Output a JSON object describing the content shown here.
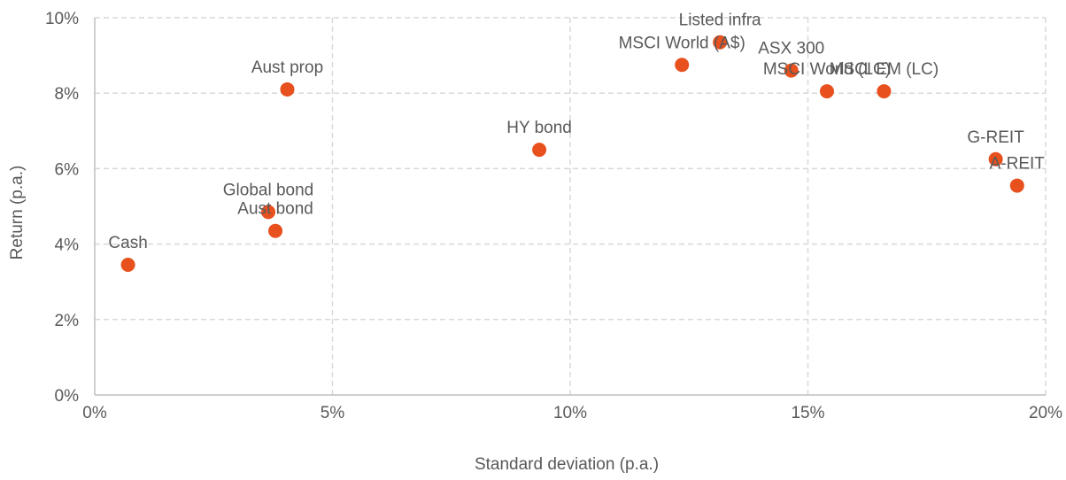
{
  "chart_data": {
    "type": "scatter",
    "xlabel": "Standard deviation (p.a.)",
    "ylabel": "Return (p.a.)",
    "xlim": [
      0,
      20
    ],
    "ylim": [
      0,
      10
    ],
    "x_unit": "%",
    "y_unit": "%",
    "x_ticks": [
      "0%",
      "5%",
      "10%",
      "15%",
      "20%"
    ],
    "y_ticks": [
      "0%",
      "2%",
      "4%",
      "6%",
      "8%",
      "10%"
    ],
    "grid": true,
    "marker_color": "#E8501E",
    "points": [
      {
        "label": "Cash",
        "x": 0.7,
        "y": 3.45
      },
      {
        "label": "Global bond",
        "x": 3.65,
        "y": 4.85
      },
      {
        "label": "Aust bond",
        "x": 3.8,
        "y": 4.35
      },
      {
        "label": "Aust prop",
        "x": 4.05,
        "y": 8.1
      },
      {
        "label": "HY bond",
        "x": 9.35,
        "y": 6.5
      },
      {
        "label": "MSCI World (A$)",
        "x": 12.35,
        "y": 8.75
      },
      {
        "label": "Listed infra",
        "x": 13.15,
        "y": 9.35
      },
      {
        "label": "ASX 300",
        "x": 14.65,
        "y": 8.6
      },
      {
        "label": "MSCI World (LC)",
        "x": 15.4,
        "y": 8.05
      },
      {
        "label": "MSCI EM (LC)",
        "x": 16.6,
        "y": 8.05
      },
      {
        "label": "G-REIT",
        "x": 18.95,
        "y": 6.25
      },
      {
        "label": "A-REIT",
        "x": 19.4,
        "y": 5.55
      }
    ]
  }
}
